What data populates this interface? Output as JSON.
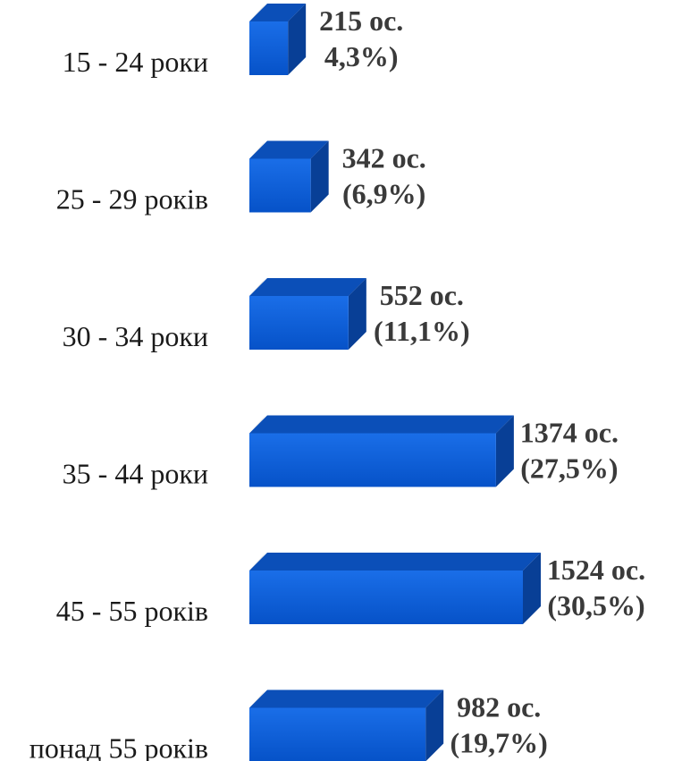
{
  "chart_data": {
    "type": "bar",
    "orientation": "horizontal",
    "style": "3d",
    "categories": [
      "15 - 24 роки",
      "25 - 29 років",
      "30 - 34 роки",
      "35 - 44 роки",
      "45 - 55 років",
      "понад 55 років"
    ],
    "values": [
      215,
      342,
      552,
      1374,
      1524,
      982
    ],
    "percents": [
      "4,3%",
      "6,9%",
      "11,1%",
      "27,5%",
      "30,5%",
      "19,7%"
    ],
    "value_labels": [
      "215 ос.",
      "342 ос.",
      "552 ос.",
      "1374 ос.",
      "1524 ос.",
      "982 ос."
    ],
    "percent_labels": [
      "4,3%)",
      "(6,9%)",
      "(11,1%)",
      "(27,5%)",
      "(30,5%)",
      "(19,7%)"
    ],
    "xlim": [
      0,
      1524
    ],
    "grid": false,
    "legend": "none",
    "colors": {
      "front": "#0a5fd8",
      "top": "#0b4fb8",
      "side": "#083f96",
      "shadow": "#d0d0d0",
      "value_text": "#3a3a3a",
      "category_text": "#1a1a1a"
    }
  }
}
